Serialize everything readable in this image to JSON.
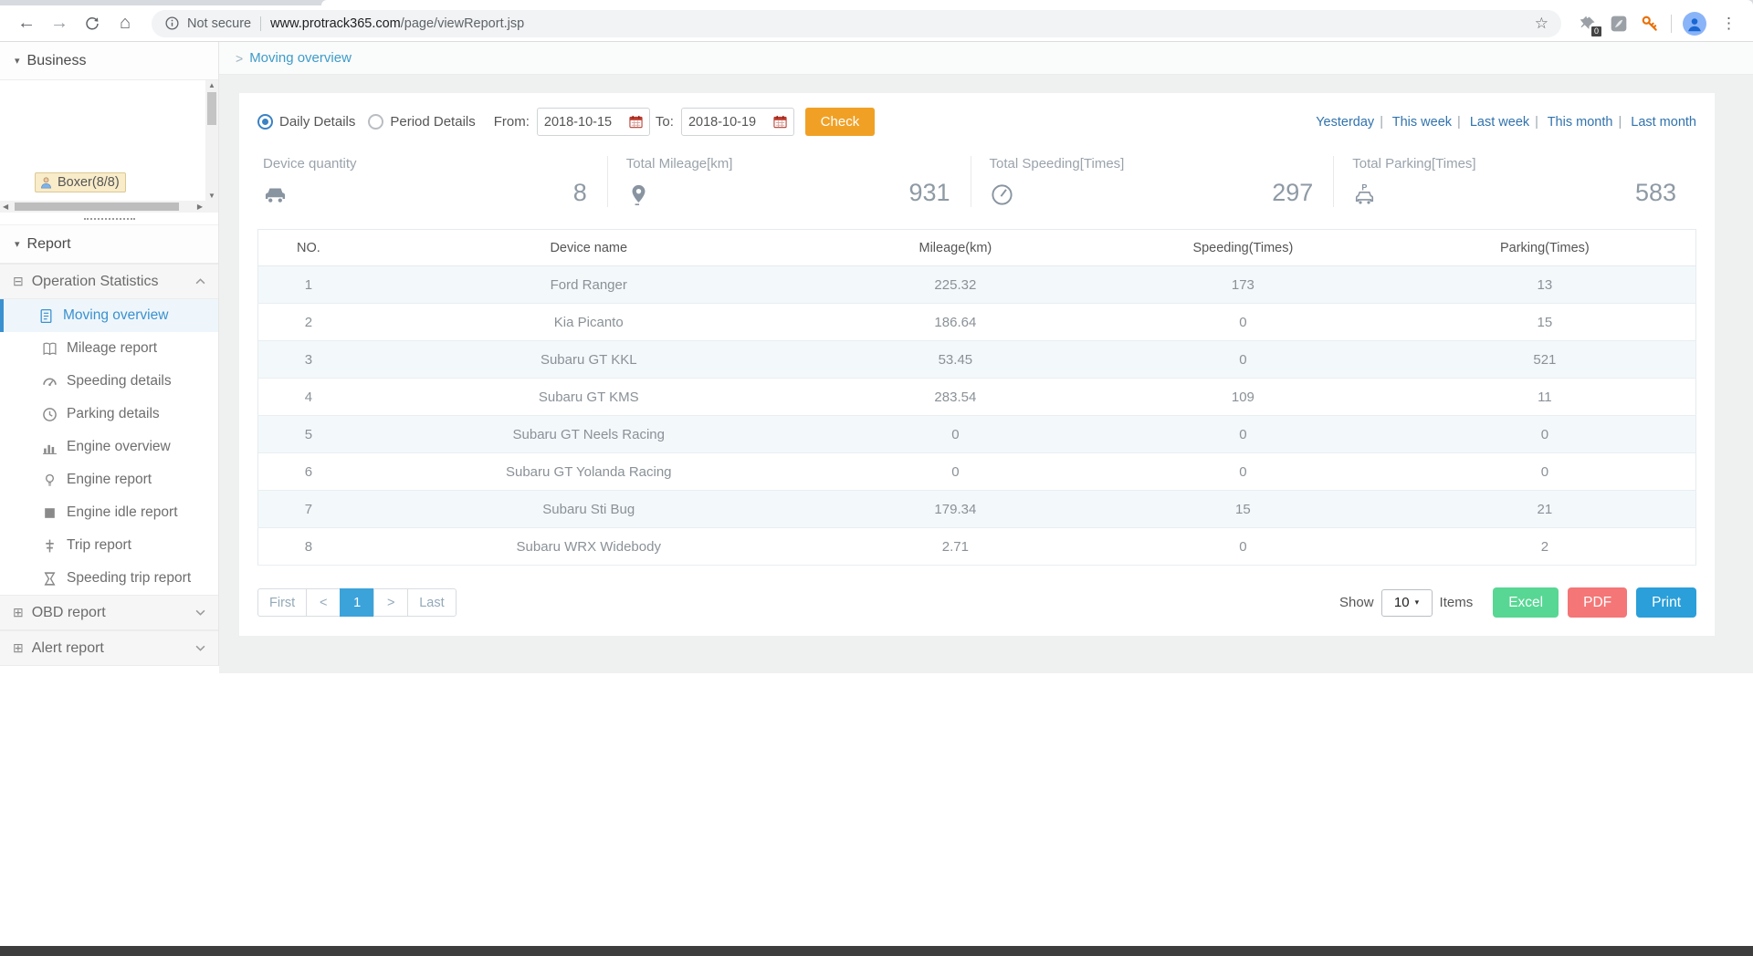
{
  "colors": {
    "accent-orange": "#f0a125",
    "quick-link": "#3173ad",
    "row-link": "#31708f",
    "excel-green": "#57d793",
    "pdf-red": "#f47676",
    "print-blue": "#2b9fd9",
    "active-page": "#3ba3da",
    "sidebar-active": "#3a91cf"
  },
  "browser": {
    "security_label": "Not secure",
    "url_domain": "www.protrack365.com",
    "url_path": "/page/viewReport.jsp",
    "ext_badge": "0"
  },
  "sidebar": {
    "business_label": "Business",
    "tree_node": "Boxer(8/8)",
    "report_label": "Report",
    "operation_label": "Operation Statistics",
    "items": [
      {
        "label": "Moving overview",
        "icon": "doc-icon",
        "active": true
      },
      {
        "label": "Mileage report",
        "icon": "book-icon"
      },
      {
        "label": "Speeding details",
        "icon": "gauge-icon"
      },
      {
        "label": "Parking details",
        "icon": "clock-icon"
      },
      {
        "label": "Engine overview",
        "icon": "barchart-icon"
      },
      {
        "label": "Engine report",
        "icon": "bulb-icon"
      },
      {
        "label": "Engine idle report",
        "icon": "square-icon"
      },
      {
        "label": "Trip report",
        "icon": "route-icon"
      },
      {
        "label": "Speeding trip report",
        "icon": "hourglass-icon"
      }
    ],
    "obd_label": "OBD report",
    "alert_label": "Alert report"
  },
  "breadcrumb": {
    "label": "Moving overview"
  },
  "filters": {
    "daily_label": "Daily Details",
    "period_label": "Period Details",
    "from_label": "From:",
    "from_value": "2018-10-15",
    "to_label": "To:",
    "to_value": "2018-10-19",
    "check_label": "Check",
    "quick_links": [
      {
        "label": "Yesterday"
      },
      {
        "label": "This week"
      },
      {
        "label": "Last week"
      },
      {
        "label": "This month"
      },
      {
        "label": "Last month"
      }
    ]
  },
  "stats": [
    {
      "label": "Device quantity",
      "icon": "car-icon",
      "value": "8"
    },
    {
      "label": "Total Mileage[km]",
      "icon": "pin-icon",
      "value": "931"
    },
    {
      "label": "Total Speeding[Times]",
      "icon": "speed-icon",
      "value": "297"
    },
    {
      "label": "Total Parking[Times]",
      "icon": "parking-icon",
      "value": "583"
    }
  ],
  "table": {
    "headers": [
      "NO.",
      "Device name",
      "Mileage(km)",
      "Speeding(Times)",
      "Parking(Times)"
    ],
    "rows": [
      {
        "no": "1",
        "name": "Ford Ranger",
        "mileage": "225.32",
        "speeding": "173",
        "parking": "13",
        "link": true
      },
      {
        "no": "2",
        "name": "Kia Picanto",
        "mileage": "186.64",
        "speeding": "0",
        "parking": "15",
        "link": true
      },
      {
        "no": "3",
        "name": "Subaru GT KKL",
        "mileage": "53.45",
        "speeding": "0",
        "parking": "521",
        "link": true
      },
      {
        "no": "4",
        "name": "Subaru GT KMS",
        "mileage": "283.54",
        "speeding": "109",
        "parking": "11",
        "link": true
      },
      {
        "no": "5",
        "name": "Subaru GT Neels Racing",
        "mileage": "0",
        "speeding": "0",
        "parking": "0",
        "link": false
      },
      {
        "no": "6",
        "name": "Subaru GT Yolanda Racing",
        "mileage": "0",
        "speeding": "0",
        "parking": "0",
        "link": false
      },
      {
        "no": "7",
        "name": "Subaru Sti Bug",
        "mileage": "179.34",
        "speeding": "15",
        "parking": "21",
        "link": true
      },
      {
        "no": "8",
        "name": "Subaru WRX Widebody",
        "mileage": "2.71",
        "speeding": "0",
        "parking": "2",
        "link": true
      }
    ]
  },
  "pagination": {
    "first": "First",
    "prev": "<",
    "page": "1",
    "next": ">",
    "last": "Last",
    "show_label": "Show",
    "page_size": "10",
    "items_label": "Items",
    "excel_label": "Excel",
    "pdf_label": "PDF",
    "print_label": "Print"
  }
}
